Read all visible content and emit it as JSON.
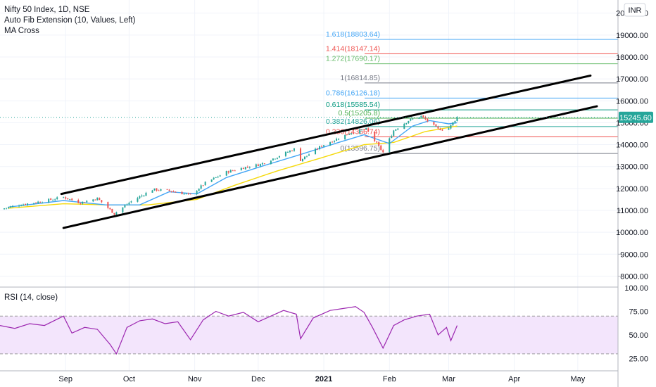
{
  "header": {
    "symbol_line": "Nifty 50 Index, 1D, NSE",
    "indicators": [
      "Auto Fib Extension (10, Values, Left)",
      "MA Cross"
    ]
  },
  "currency_badge": "INR",
  "last_price_label": "15245.60",
  "rsi_title": "RSI (14, close)",
  "colors": {
    "up": "#26a69a",
    "down": "#ef5350",
    "ma_fast": "#42a5f5",
    "ma_slow": "#f5d90a",
    "rsi_line": "#9c27b0",
    "rsi_band": "#f3e5fc",
    "channel": "#000000",
    "price_badge": "#26a69a"
  },
  "chart_data": [
    {
      "type": "line",
      "title": "Nifty 50 Index, 1D, NSE",
      "y_axis": {
        "range": [
          7500,
          20600
        ],
        "ticks": [
          "8000.00",
          "9000.00",
          "10000.00",
          "11000.00",
          "12000.00",
          "13000.00",
          "14000.00",
          "15000.00",
          "16000.00",
          "17000.00",
          "18000.00",
          "19000.00",
          "20000.00"
        ]
      },
      "x_axis": {
        "range": [
          "2020-08-01",
          "2021-05-20"
        ],
        "ticks": [
          {
            "date": "2020-09-01",
            "label": "Sep"
          },
          {
            "date": "2020-10-01",
            "label": "Oct"
          },
          {
            "date": "2020-11-01",
            "label": "Nov"
          },
          {
            "date": "2020-12-01",
            "label": "Dec"
          },
          {
            "date": "2021-01-01",
            "label": "2021"
          },
          {
            "date": "2021-02-01",
            "label": "Feb"
          },
          {
            "date": "2021-03-01",
            "label": "Mar"
          },
          {
            "date": "2021-04-01",
            "label": "Apr"
          },
          {
            "date": "2021-05-01",
            "label": "May"
          }
        ]
      },
      "price_path": [
        [
          "2020-08-01",
          11050
        ],
        [
          "2020-08-10",
          11250
        ],
        [
          "2020-08-20",
          11400
        ],
        [
          "2020-08-31",
          11600
        ],
        [
          "2020-09-08",
          11350
        ],
        [
          "2020-09-16",
          11550
        ],
        [
          "2020-09-24",
          10850
        ],
        [
          "2020-10-01",
          11350
        ],
        [
          "2020-10-12",
          11950
        ],
        [
          "2020-10-20",
          11900
        ],
        [
          "2020-10-30",
          11700
        ],
        [
          "2020-11-06",
          12250
        ],
        [
          "2020-11-16",
          12750
        ],
        [
          "2020-11-24",
          12950
        ],
        [
          "2020-12-02",
          13100
        ],
        [
          "2020-12-10",
          13450
        ],
        [
          "2020-12-18",
          13800
        ],
        [
          "2020-12-21",
          13300
        ],
        [
          "2020-12-31",
          13950
        ],
        [
          "2021-01-08",
          14300
        ],
        [
          "2021-01-14",
          14550
        ],
        [
          "2021-01-21",
          14700
        ],
        [
          "2021-01-29",
          13650
        ],
        [
          "2021-02-03",
          14650
        ],
        [
          "2021-02-10",
          15100
        ],
        [
          "2021-02-16",
          15300
        ],
        [
          "2021-02-24",
          14700
        ],
        [
          "2021-03-01",
          14750
        ],
        [
          "2021-03-05",
          15245.6
        ]
      ],
      "ma_fast": [
        [
          "2020-08-05",
          11150
        ],
        [
          "2020-08-31",
          11450
        ],
        [
          "2020-09-20",
          11250
        ],
        [
          "2020-10-06",
          11250
        ],
        [
          "2020-10-20",
          11850
        ],
        [
          "2020-11-02",
          11750
        ],
        [
          "2020-11-16",
          12500
        ],
        [
          "2020-12-04",
          13050
        ],
        [
          "2020-12-21",
          13550
        ],
        [
          "2021-01-08",
          14100
        ],
        [
          "2021-01-20",
          14450
        ],
        [
          "2021-02-01",
          14050
        ],
        [
          "2021-02-12",
          14850
        ],
        [
          "2021-02-20",
          15100
        ],
        [
          "2021-03-01",
          14950
        ],
        [
          "2021-03-05",
          15000
        ]
      ],
      "ma_slow": [
        [
          "2020-08-05",
          11100
        ],
        [
          "2020-08-31",
          11300
        ],
        [
          "2020-09-20",
          11250
        ],
        [
          "2020-10-10",
          11250
        ],
        [
          "2020-11-02",
          11500
        ],
        [
          "2020-11-20",
          12150
        ],
        [
          "2020-12-10",
          12800
        ],
        [
          "2020-12-31",
          13400
        ],
        [
          "2021-01-20",
          14000
        ],
        [
          "2021-02-03",
          14100
        ],
        [
          "2021-02-18",
          14600
        ],
        [
          "2021-03-05",
          14850
        ]
      ],
      "channel_upper": [
        [
          "2020-08-30",
          11750
        ],
        [
          "2021-05-07",
          17150
        ]
      ],
      "channel_lower": [
        [
          "2020-08-31",
          10200
        ],
        [
          "2021-05-10",
          15750
        ]
      ],
      "fib_levels": [
        {
          "label": "1.618(18803.64)",
          "value": 18803.64,
          "color": "#42a5f5"
        },
        {
          "label": "1.414(18147.14)",
          "value": 18147.14,
          "color": "#ef5350"
        },
        {
          "label": "1.272(17690.17)",
          "value": 17690.17,
          "color": "#66bb6a"
        },
        {
          "label": "1(16814.85)",
          "value": 16814.85,
          "color": "#787b86"
        },
        {
          "label": "0.786(16126.18)",
          "value": 16126.18,
          "color": "#42a5f5"
        },
        {
          "label": "0.618(15585.54)",
          "value": 15585.54,
          "color": "#089981"
        },
        {
          "label": "0.5(15205.8)",
          "value": 15205.8,
          "color": "#4caf50"
        },
        {
          "label": "0.382(14826.06)",
          "value": 14826.06,
          "color": "#26a69a"
        },
        {
          "label": "0.236(14356.74)",
          "value": 14356.74,
          "color": "#ef5350"
        },
        {
          "label": "0(13596.75)",
          "value": 13596.75,
          "color": "#787b86"
        }
      ],
      "last_price": 15245.6
    },
    {
      "type": "line",
      "title": "RSI (14, close)",
      "y_axis": {
        "range": [
          12,
          100
        ],
        "ticks": [
          "25.00",
          "50.00",
          "75.00",
          "100.00"
        ]
      },
      "band": [
        30,
        70
      ],
      "series": [
        {
          "name": "RSI",
          "values": [
            [
              "2020-08-01",
              60
            ],
            [
              "2020-08-08",
              57
            ],
            [
              "2020-08-15",
              62
            ],
            [
              "2020-08-22",
              60
            ],
            [
              "2020-08-31",
              70
            ],
            [
              "2020-09-04",
              52
            ],
            [
              "2020-09-10",
              58
            ],
            [
              "2020-09-16",
              56
            ],
            [
              "2020-09-22",
              40
            ],
            [
              "2020-09-25",
              30
            ],
            [
              "2020-09-30",
              58
            ],
            [
              "2020-10-06",
              65
            ],
            [
              "2020-10-12",
              67
            ],
            [
              "2020-10-18",
              62
            ],
            [
              "2020-10-24",
              64
            ],
            [
              "2020-10-30",
              45
            ],
            [
              "2020-11-05",
              66
            ],
            [
              "2020-11-11",
              75
            ],
            [
              "2020-11-17",
              70
            ],
            [
              "2020-11-24",
              74
            ],
            [
              "2020-12-01",
              64
            ],
            [
              "2020-12-07",
              70
            ],
            [
              "2020-12-13",
              76
            ],
            [
              "2020-12-19",
              72
            ],
            [
              "2020-12-21",
              46
            ],
            [
              "2020-12-27",
              68
            ],
            [
              "2021-01-04",
              76
            ],
            [
              "2021-01-10",
              78
            ],
            [
              "2021-01-16",
              80
            ],
            [
              "2021-01-20",
              74
            ],
            [
              "2021-01-24",
              58
            ],
            [
              "2021-01-29",
              36
            ],
            [
              "2021-02-03",
              60
            ],
            [
              "2021-02-08",
              66
            ],
            [
              "2021-02-14",
              70
            ],
            [
              "2021-02-20",
              72
            ],
            [
              "2021-02-24",
              50
            ],
            [
              "2021-02-28",
              58
            ],
            [
              "2021-03-02",
              44
            ],
            [
              "2021-03-05",
              60
            ]
          ]
        }
      ]
    }
  ]
}
